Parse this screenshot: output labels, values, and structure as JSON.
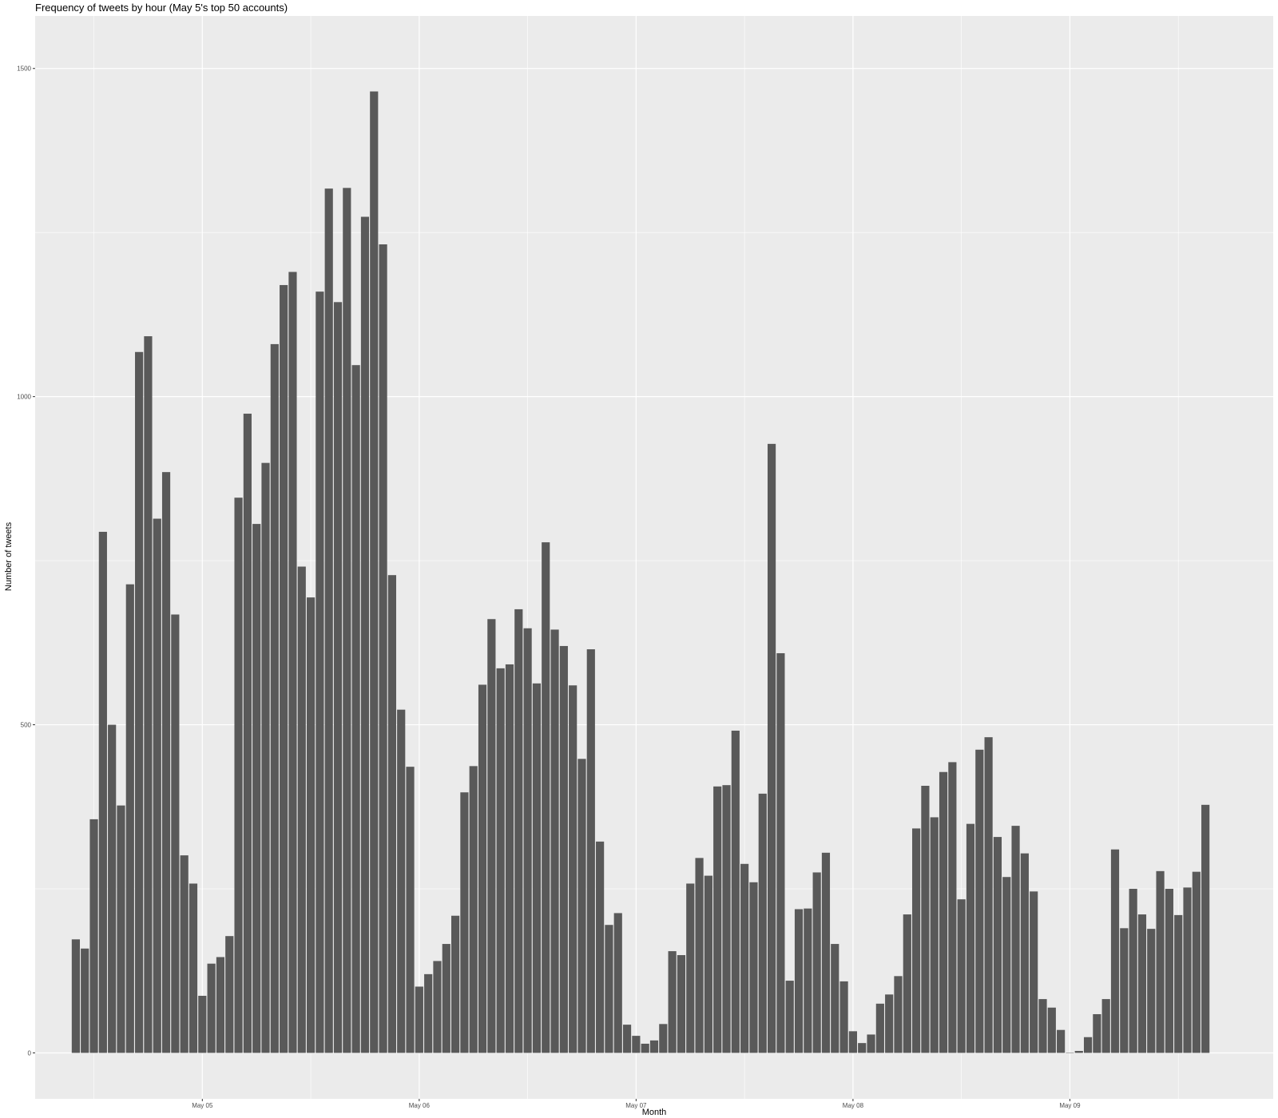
{
  "chart_data": {
    "type": "bar",
    "title": "Frequency of tweets by hour (May 5's top 50 accounts)",
    "xlabel": "Month",
    "ylabel": "Number of tweets",
    "ylim": [
      -70,
      1580
    ],
    "xlim": [
      "2019-05-04 05:30",
      "2019-05-09 22:30"
    ],
    "x_tick_dates": [
      "2019-05-05 00:00",
      "2019-05-06 00:00",
      "2019-05-07 00:00",
      "2019-05-08 00:00",
      "2019-05-09 00:00"
    ],
    "x_tick_labels": [
      "May 05",
      "May 06",
      "May 07",
      "May 08",
      "May 09"
    ],
    "y_ticks": [
      0,
      500,
      1000,
      1500
    ],
    "y_tick_labels": [
      "0",
      "500",
      "1000",
      "1500"
    ],
    "grid": true,
    "bar_color": "#595959",
    "panel_color": "#ebebeb",
    "grid_color": "#ffffff",
    "x_start": "2019-05-04 10:00",
    "x_step_hours": 1,
    "values": [
      173,
      159,
      356,
      794,
      500,
      377,
      714,
      1068,
      1092,
      814,
      885,
      668,
      301,
      258,
      87,
      136,
      146,
      178,
      846,
      974,
      806,
      899,
      1080,
      1170,
      1190,
      741,
      694,
      1160,
      1317,
      1144,
      1318,
      1048,
      1274,
      1465,
      1232,
      728,
      523,
      436,
      101,
      120,
      140,
      166,
      209,
      397,
      437,
      561,
      661,
      586,
      592,
      676,
      647,
      563,
      778,
      645,
      620,
      560,
      448,
      615,
      322,
      195,
      213,
      43,
      26,
      14,
      19,
      44,
      155,
      149,
      258,
      297,
      270,
      406,
      408,
      491,
      288,
      260,
      395,
      928,
      609,
      110,
      219,
      220,
      275,
      305,
      166,
      109,
      33,
      15,
      28,
      75,
      89,
      117,
      211,
      342,
      407,
      359,
      428,
      443,
      234,
      349,
      462,
      481,
      329,
      268,
      346,
      304,
      246,
      82,
      69,
      35,
      0,
      3,
      24,
      59,
      82,
      310,
      190,
      250,
      211,
      189,
      277,
      250,
      210,
      252,
      276,
      378
    ]
  }
}
